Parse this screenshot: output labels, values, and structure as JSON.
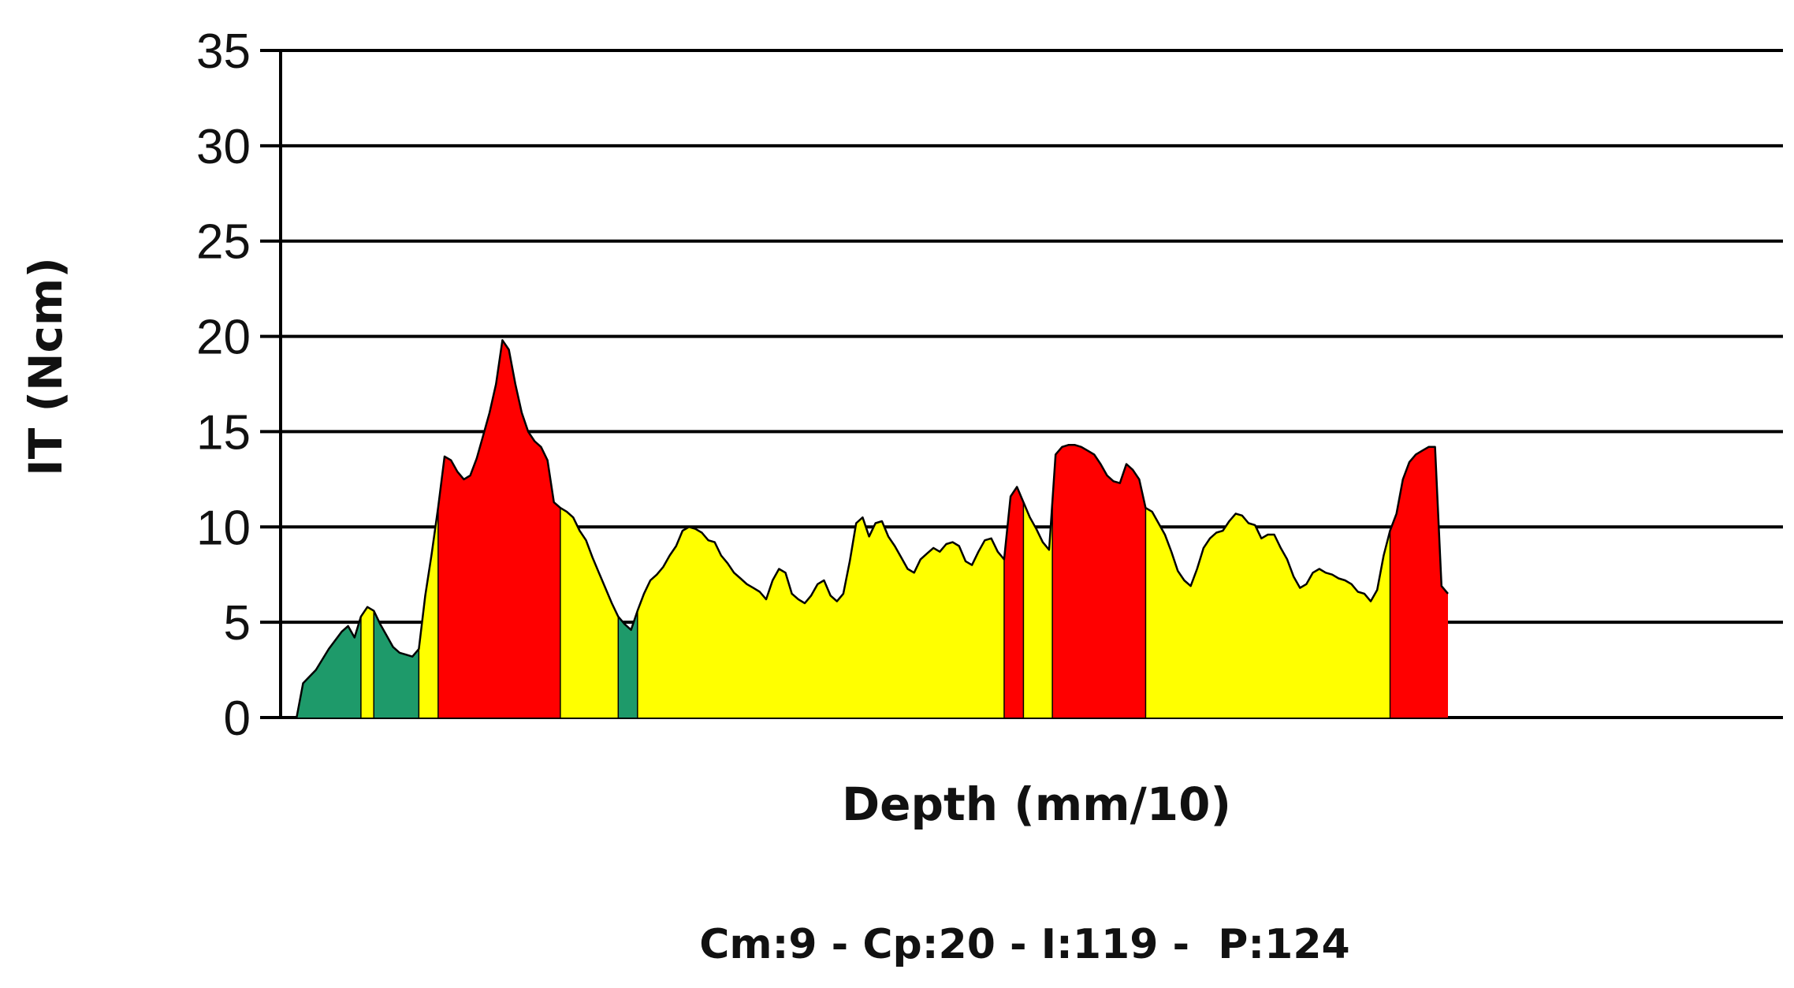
{
  "chart_data": {
    "type": "area",
    "title": "",
    "xlabel": "Depth (mm/10)",
    "ylabel": "IT (Ncm)",
    "ylim": [
      0,
      35
    ],
    "yticks": [
      0,
      5,
      10,
      15,
      20,
      25,
      30,
      35
    ],
    "grid": true,
    "footer": "Cm:9 - Cp:20 - I:119 -  P:124",
    "colors": {
      "green": "#1e9a6a",
      "yellow": "#ffff00",
      "red": "#ff0000"
    },
    "profile": [
      [
        0,
        0
      ],
      [
        2,
        0
      ],
      [
        3,
        1.8
      ],
      [
        5,
        2.5
      ],
      [
        7,
        3.6
      ],
      [
        9,
        4.5
      ],
      [
        10,
        4.8
      ],
      [
        11,
        4.2
      ],
      [
        12,
        5.3
      ],
      [
        13,
        5.8
      ],
      [
        14,
        5.6
      ],
      [
        15,
        4.9
      ],
      [
        16,
        4.3
      ],
      [
        17,
        3.7
      ],
      [
        18,
        3.4
      ],
      [
        19,
        3.3
      ],
      [
        20,
        3.2
      ],
      [
        21,
        3.6
      ],
      [
        22,
        6.4
      ],
      [
        23,
        8.6
      ],
      [
        24,
        11.0
      ],
      [
        25,
        13.7
      ],
      [
        26,
        13.5
      ],
      [
        27,
        12.9
      ],
      [
        28,
        12.5
      ],
      [
        29,
        12.7
      ],
      [
        30,
        13.6
      ],
      [
        31,
        14.8
      ],
      [
        32,
        16.0
      ],
      [
        33,
        17.5
      ],
      [
        34,
        19.8
      ],
      [
        35,
        19.3
      ],
      [
        36,
        17.5
      ],
      [
        37,
        16.0
      ],
      [
        38,
        15.0
      ],
      [
        39,
        14.5
      ],
      [
        40,
        14.2
      ],
      [
        41,
        13.5
      ],
      [
        42,
        11.3
      ],
      [
        43,
        11.0
      ],
      [
        44,
        10.8
      ],
      [
        45,
        10.5
      ],
      [
        46,
        9.8
      ],
      [
        47,
        9.3
      ],
      [
        48,
        8.4
      ],
      [
        49,
        7.6
      ],
      [
        50,
        6.8
      ],
      [
        51,
        6.0
      ],
      [
        52,
        5.3
      ],
      [
        53,
        4.9
      ],
      [
        54,
        4.6
      ],
      [
        55,
        5.6
      ],
      [
        56,
        6.5
      ],
      [
        57,
        7.2
      ],
      [
        58,
        7.5
      ],
      [
        59,
        7.9
      ],
      [
        60,
        8.5
      ],
      [
        61,
        9.0
      ],
      [
        62,
        9.8
      ],
      [
        63,
        10.0
      ],
      [
        64,
        9.9
      ],
      [
        65,
        9.7
      ],
      [
        66,
        9.3
      ],
      [
        67,
        9.2
      ],
      [
        68,
        8.5
      ],
      [
        69,
        8.1
      ],
      [
        70,
        7.6
      ],
      [
        71,
        7.3
      ],
      [
        72,
        7.0
      ],
      [
        73,
        6.8
      ],
      [
        74,
        6.6
      ],
      [
        75,
        6.2
      ],
      [
        76,
        7.2
      ],
      [
        77,
        7.8
      ],
      [
        78,
        7.6
      ],
      [
        79,
        6.5
      ],
      [
        80,
        6.2
      ],
      [
        81,
        6.0
      ],
      [
        82,
        6.4
      ],
      [
        83,
        7.0
      ],
      [
        84,
        7.2
      ],
      [
        85,
        6.4
      ],
      [
        86,
        6.1
      ],
      [
        87,
        6.5
      ],
      [
        88,
        8.2
      ],
      [
        89,
        10.2
      ],
      [
        90,
        10.5
      ],
      [
        91,
        9.5
      ],
      [
        92,
        10.2
      ],
      [
        93,
        10.3
      ],
      [
        94,
        9.5
      ],
      [
        95,
        9.0
      ],
      [
        96,
        8.4
      ],
      [
        97,
        7.8
      ],
      [
        98,
        7.6
      ],
      [
        99,
        8.3
      ],
      [
        100,
        8.6
      ],
      [
        101,
        8.9
      ],
      [
        102,
        8.7
      ],
      [
        103,
        9.1
      ],
      [
        104,
        9.2
      ],
      [
        105,
        9.0
      ],
      [
        106,
        8.2
      ],
      [
        107,
        8.0
      ],
      [
        108,
        8.7
      ],
      [
        109,
        9.3
      ],
      [
        110,
        9.4
      ],
      [
        111,
        8.7
      ],
      [
        112,
        8.3
      ],
      [
        113,
        11.6
      ],
      [
        114,
        12.1
      ],
      [
        115,
        11.3
      ],
      [
        116,
        10.5
      ],
      [
        117,
        9.9
      ],
      [
        118,
        9.2
      ],
      [
        119,
        8.8
      ],
      [
        120,
        13.8
      ],
      [
        121,
        14.2
      ],
      [
        122,
        14.3
      ],
      [
        123,
        14.3
      ],
      [
        124,
        14.2
      ],
      [
        125,
        14.0
      ],
      [
        126,
        13.8
      ],
      [
        127,
        13.3
      ],
      [
        128,
        12.7
      ],
      [
        129,
        12.4
      ],
      [
        130,
        12.3
      ],
      [
        131,
        13.3
      ],
      [
        132,
        13.0
      ],
      [
        133,
        12.5
      ],
      [
        134,
        11.0
      ],
      [
        135,
        10.8
      ],
      [
        136,
        10.2
      ],
      [
        137,
        9.6
      ],
      [
        138,
        8.7
      ],
      [
        139,
        7.7
      ],
      [
        140,
        7.2
      ],
      [
        141,
        6.9
      ],
      [
        142,
        7.8
      ],
      [
        143,
        8.9
      ],
      [
        144,
        9.4
      ],
      [
        145,
        9.7
      ],
      [
        146,
        9.8
      ],
      [
        147,
        10.3
      ],
      [
        148,
        10.7
      ],
      [
        149,
        10.6
      ],
      [
        150,
        10.2
      ],
      [
        151,
        10.1
      ],
      [
        152,
        9.4
      ],
      [
        153,
        9.6
      ],
      [
        154,
        9.6
      ],
      [
        155,
        8.9
      ],
      [
        156,
        8.3
      ],
      [
        157,
        7.4
      ],
      [
        158,
        6.8
      ],
      [
        159,
        7.0
      ],
      [
        160,
        7.6
      ],
      [
        161,
        7.8
      ],
      [
        162,
        7.6
      ],
      [
        163,
        7.5
      ],
      [
        164,
        7.3
      ],
      [
        165,
        7.2
      ],
      [
        166,
        7.0
      ],
      [
        167,
        6.6
      ],
      [
        168,
        6.5
      ],
      [
        169,
        6.1
      ],
      [
        170,
        6.7
      ],
      [
        171,
        8.5
      ],
      [
        172,
        9.8
      ],
      [
        173,
        10.7
      ],
      [
        174,
        12.5
      ],
      [
        175,
        13.4
      ],
      [
        176,
        13.8
      ],
      [
        177,
        14.0
      ],
      [
        178,
        14.2
      ],
      [
        179,
        14.2
      ],
      [
        180,
        6.9
      ],
      [
        181,
        6.5
      ]
    ],
    "segments": [
      {
        "color": "green",
        "from": 0,
        "to": 12
      },
      {
        "color": "yellow",
        "from": 12,
        "to": 14
      },
      {
        "color": "green",
        "from": 14,
        "to": 21
      },
      {
        "color": "yellow",
        "from": 21,
        "to": 24
      },
      {
        "color": "red",
        "from": 24,
        "to": 43
      },
      {
        "color": "yellow",
        "from": 43,
        "to": 52
      },
      {
        "color": "green",
        "from": 52,
        "to": 55
      },
      {
        "color": "yellow",
        "from": 55,
        "to": 112
      },
      {
        "color": "red",
        "from": 112,
        "to": 115
      },
      {
        "color": "yellow",
        "from": 115,
        "to": 119.5
      },
      {
        "color": "red",
        "from": 119.5,
        "to": 134
      },
      {
        "color": "yellow",
        "from": 134,
        "to": 172
      },
      {
        "color": "red",
        "from": 172,
        "to": 181
      }
    ]
  }
}
